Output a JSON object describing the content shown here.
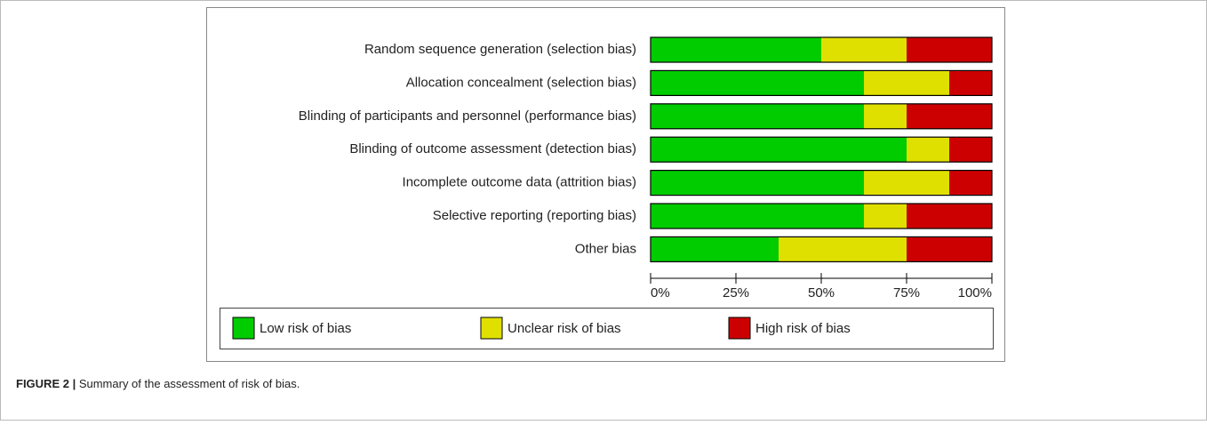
{
  "chart_data": {
    "type": "stacked_barh",
    "categories": [
      "Random sequence generation (selection bias)",
      "Allocation concealment (selection bias)",
      "Blinding of participants and personnel (performance bias)",
      "Blinding of outcome assessment (detection bias)",
      "Incomplete outcome data (attrition bias)",
      "Selective reporting (reporting bias)",
      "Other bias"
    ],
    "series": [
      {
        "name": "Low risk of bias",
        "color": "#00cc00",
        "values": [
          50,
          62.5,
          62.5,
          75,
          62.5,
          62.5,
          37.5
        ]
      },
      {
        "name": "Unclear risk of bias",
        "color": "#e0e000",
        "values": [
          25,
          25,
          12.5,
          12.5,
          25,
          12.5,
          37.5
        ]
      },
      {
        "name": "High risk of bias",
        "color": "#cc0000",
        "values": [
          25,
          12.5,
          25,
          12.5,
          12.5,
          25,
          25
        ]
      }
    ],
    "xlim": [
      0,
      100
    ],
    "xticks": [
      {
        "value": 0,
        "label": "0%"
      },
      {
        "value": 25,
        "label": "25%"
      },
      {
        "value": 50,
        "label": "50%"
      },
      {
        "value": 75,
        "label": "75%"
      },
      {
        "value": 100,
        "label": "100%"
      }
    ]
  },
  "caption": {
    "label": "FIGURE 2 |",
    "text": "Summary of the assessment of risk of bias."
  }
}
